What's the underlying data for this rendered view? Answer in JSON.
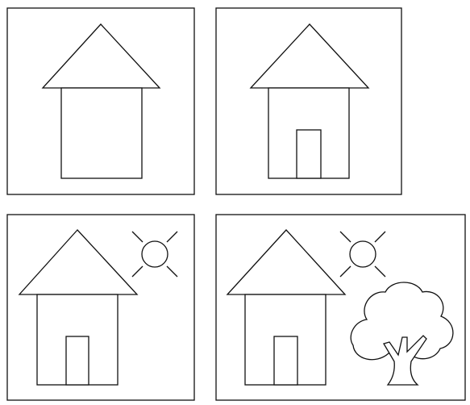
{
  "figure": {
    "stroke_color": "#111111",
    "background_color": "#ffffff",
    "panels": [
      {
        "id": 1,
        "elements": [
          "roof",
          "walls"
        ]
      },
      {
        "id": 2,
        "elements": [
          "roof",
          "walls",
          "door"
        ]
      },
      {
        "id": 3,
        "elements": [
          "roof",
          "walls",
          "door",
          "sun"
        ]
      },
      {
        "id": 4,
        "elements": [
          "roof",
          "walls",
          "door",
          "sun",
          "tree"
        ]
      }
    ]
  }
}
